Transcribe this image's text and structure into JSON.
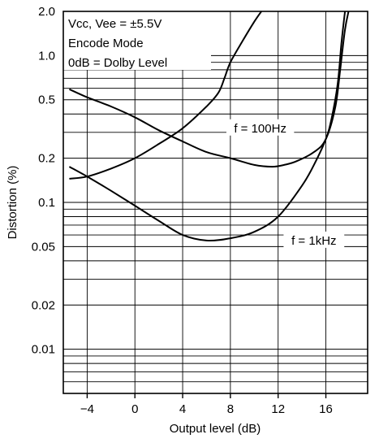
{
  "chart_data": {
    "type": "line",
    "xlabel": "Output level (dB)",
    "ylabel": "Distortion (%)",
    "x_ticks": [
      -4,
      0,
      4,
      8,
      12,
      16
    ],
    "x_tick_labels": [
      "−4",
      "0",
      "4",
      "8",
      "12",
      "16"
    ],
    "y_ticks": [
      0.01,
      0.02,
      0.05,
      0.1,
      0.2,
      0.5,
      1.0,
      2.0
    ],
    "y_tick_labels": [
      "0.01",
      "0.02",
      "0.05",
      "0.1",
      "0.2",
      "0.5",
      "1.0",
      "2.0"
    ],
    "xlim": [
      -6,
      19.5
    ],
    "ylim": [
      0.005,
      2.0
    ],
    "y_scale": "log",
    "grid": true,
    "conditions": {
      "line1": "Vcc, Vee = ±5.5V",
      "line2": "Encode Mode",
      "line3": "0dB = Dolby Level"
    },
    "series": [
      {
        "name": "f = 100Hz",
        "x": [
          -5.5,
          -4,
          -2,
          0,
          2,
          4,
          6,
          8,
          10,
          11.5,
          12.5,
          13.5,
          15,
          16,
          16.8,
          17.2,
          17.6,
          17.9
        ],
        "y": [
          0.59,
          0.52,
          0.45,
          0.38,
          0.31,
          0.26,
          0.22,
          0.2,
          0.18,
          0.175,
          0.18,
          0.19,
          0.22,
          0.27,
          0.45,
          0.8,
          1.5,
          2.0
        ]
      },
      {
        "name": "f = 1kHz",
        "x": [
          -5.5,
          -4,
          -2,
          0,
          2,
          4,
          6,
          8,
          10,
          12,
          14,
          15,
          16,
          16.5,
          17,
          17.3,
          17.6
        ],
        "y": [
          0.175,
          0.15,
          0.12,
          0.095,
          0.075,
          0.06,
          0.055,
          0.057,
          0.063,
          0.08,
          0.13,
          0.18,
          0.27,
          0.38,
          0.65,
          1.2,
          2.0
        ]
      },
      {
        "name": "",
        "x": [
          -5.5,
          -4,
          -2,
          0,
          2,
          4,
          6,
          7,
          7.5,
          8,
          9,
          10,
          10.6
        ],
        "y": [
          0.145,
          0.15,
          0.17,
          0.2,
          0.25,
          0.32,
          0.45,
          0.56,
          0.7,
          0.9,
          1.25,
          1.7,
          2.0
        ]
      }
    ],
    "annotations": [
      {
        "text": "f = 100Hz",
        "x": 10.5,
        "y": 0.32
      },
      {
        "text": "f = 1kHz",
        "x": 15.0,
        "y": 0.055
      }
    ]
  }
}
